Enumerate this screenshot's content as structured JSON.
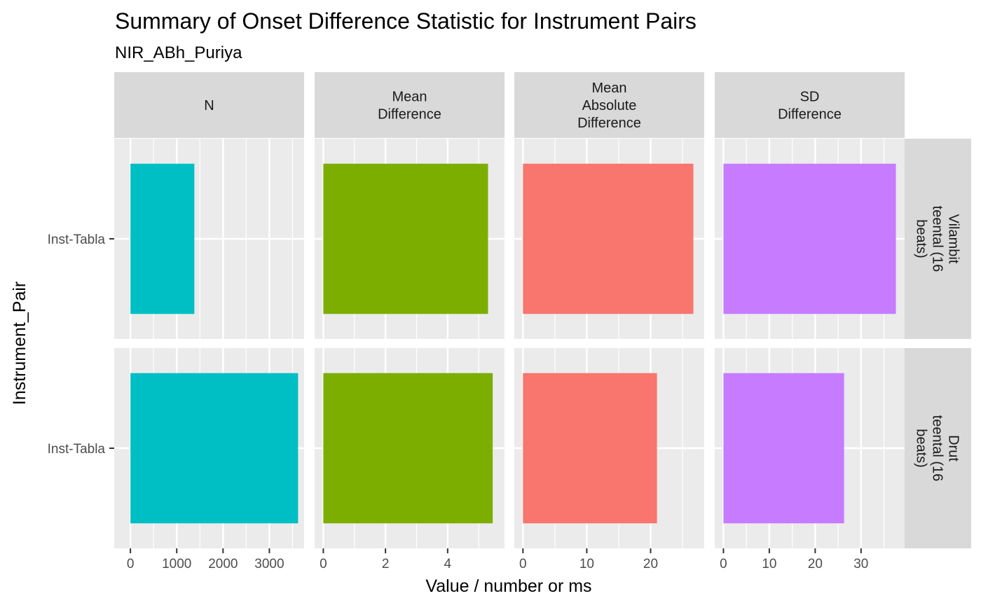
{
  "chart_data": {
    "type": "bar",
    "orientation": "horizontal",
    "title": "Summary of Onset Difference Statistic for Instrument Pairs",
    "subtitle": "NIR_ABh_Puriya",
    "xlabel": "Value / number or ms",
    "ylabel": "Instrument_Pair",
    "facet_columns": [
      {
        "id": "n",
        "lines": [
          "N"
        ],
        "color": "#00BFC4",
        "xlim": [
          -350,
          3750
        ],
        "ticks": [
          0,
          1000,
          2000,
          3000
        ],
        "minor": [
          500,
          1500,
          2500,
          3500
        ]
      },
      {
        "id": "mean",
        "lines": [
          "Mean",
          "Difference"
        ],
        "color": "#7CAE00",
        "xlim": [
          -0.28,
          5.83
        ],
        "ticks": [
          0,
          2,
          4
        ],
        "minor": [
          1,
          3,
          5
        ]
      },
      {
        "id": "mad",
        "lines": [
          "Mean",
          "Absolute",
          "Difference"
        ],
        "color": "#F8766D",
        "xlim": [
          -1.35,
          28.4
        ],
        "ticks": [
          0,
          10,
          20
        ],
        "minor": [
          5,
          15,
          25
        ]
      },
      {
        "id": "sd",
        "lines": [
          "SD",
          "Difference"
        ],
        "color": "#C77CFF",
        "xlim": [
          -1.9,
          39.5
        ],
        "ticks": [
          0,
          10,
          20,
          30
        ],
        "minor": [
          5,
          15,
          25,
          35
        ]
      }
    ],
    "facet_rows": [
      {
        "id": "vilambit",
        "lines": [
          "Vilambit",
          "teental (16",
          "beats)"
        ],
        "category": "Inst-Tabla",
        "values": [
          1380,
          5.3,
          26.7,
          37.6
        ]
      },
      {
        "id": "drut",
        "lines": [
          "Drut",
          "teental (16",
          "beats)"
        ],
        "category": "Inst-Tabla",
        "values": [
          3620,
          5.45,
          21.0,
          26.3
        ]
      }
    ],
    "grid": true,
    "legend": "none"
  }
}
